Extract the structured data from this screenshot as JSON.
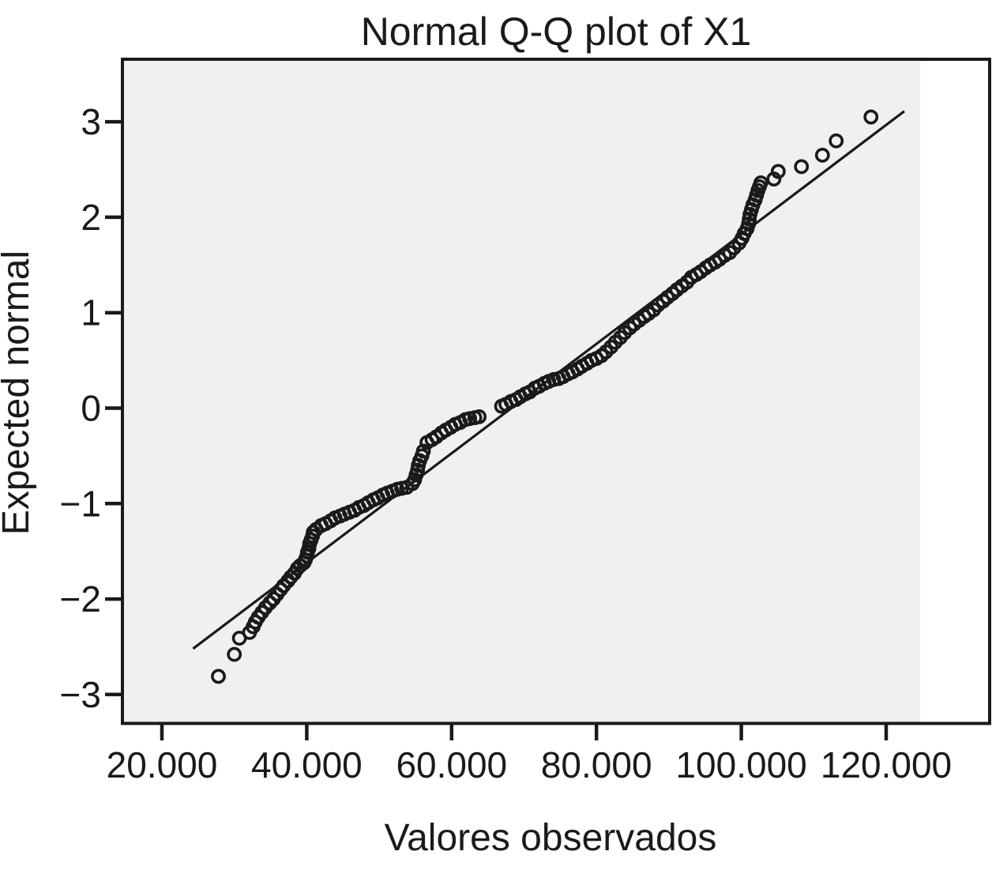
{
  "figure": {
    "title": "Normal Q-Q plot of X1",
    "x_axis_label": "Valores observados",
    "y_axis_label": "Expected normal"
  },
  "colors": {
    "ink": "#1a1a1a",
    "plot_background": "#f0f0ee",
    "page_background": "#ffffff"
  },
  "chart_data": {
    "type": "scatter",
    "title": "Normal Q-Q plot of X1",
    "xlabel": "Valores observados",
    "ylabel": "Expected normal",
    "marker": "open-circle",
    "grid": false,
    "legend": "none",
    "xlim": [
      14500,
      134500
    ],
    "ylim": [
      -3.3,
      3.65
    ],
    "x_ticks": [
      {
        "value": 20000,
        "label": "20.000"
      },
      {
        "value": 40000,
        "label": "40.000"
      },
      {
        "value": 60000,
        "label": "60.000"
      },
      {
        "value": 80000,
        "label": "80.000"
      },
      {
        "value": 100000,
        "label": "100.000"
      },
      {
        "value": 120000,
        "label": "120.000"
      }
    ],
    "y_ticks": [
      {
        "value": 3,
        "label": "3"
      },
      {
        "value": 2,
        "label": "2"
      },
      {
        "value": 1,
        "label": "1"
      },
      {
        "value": 0,
        "label": "0"
      },
      {
        "value": -1,
        "label": "−1"
      },
      {
        "value": -2,
        "label": "−2"
      },
      {
        "value": -3,
        "label": "−3"
      }
    ],
    "reference_line": {
      "x1": 24300,
      "y1": -2.52,
      "x2": 122500,
      "y2": 3.11
    },
    "points": [
      [
        27800,
        -2.81
      ],
      [
        30000,
        -2.58
      ],
      [
        30700,
        -2.41
      ],
      [
        32100,
        -2.35
      ],
      [
        32600,
        -2.29
      ],
      [
        32900,
        -2.24
      ],
      [
        33300,
        -2.19
      ],
      [
        33800,
        -2.14
      ],
      [
        34300,
        -2.09
      ],
      [
        34900,
        -2.04
      ],
      [
        35400,
        -2.0
      ],
      [
        35900,
        -1.95
      ],
      [
        36400,
        -1.9
      ],
      [
        36800,
        -1.86
      ],
      [
        37400,
        -1.81
      ],
      [
        37800,
        -1.77
      ],
      [
        38300,
        -1.73
      ],
      [
        38700,
        -1.68
      ],
      [
        39100,
        -1.65
      ],
      [
        39600,
        -1.62
      ],
      [
        39800,
        -1.59
      ],
      [
        40000,
        -1.55
      ],
      [
        40100,
        -1.51
      ],
      [
        40300,
        -1.47
      ],
      [
        40400,
        -1.42
      ],
      [
        40600,
        -1.38
      ],
      [
        40800,
        -1.34
      ],
      [
        40900,
        -1.3
      ],
      [
        41300,
        -1.27
      ],
      [
        42000,
        -1.23
      ],
      [
        42600,
        -1.21
      ],
      [
        43300,
        -1.18
      ],
      [
        43900,
        -1.15
      ],
      [
        44600,
        -1.13
      ],
      [
        45200,
        -1.11
      ],
      [
        45900,
        -1.09
      ],
      [
        46600,
        -1.07
      ],
      [
        47200,
        -1.04
      ],
      [
        47900,
        -1.02
      ],
      [
        48500,
        -0.99
      ],
      [
        49200,
        -0.96
      ],
      [
        49800,
        -0.94
      ],
      [
        50500,
        -0.91
      ],
      [
        51100,
        -0.89
      ],
      [
        51800,
        -0.87
      ],
      [
        52500,
        -0.85
      ],
      [
        53100,
        -0.84
      ],
      [
        53800,
        -0.83
      ],
      [
        54600,
        -0.79
      ],
      [
        54900,
        -0.75
      ],
      [
        55100,
        -0.7
      ],
      [
        55300,
        -0.65
      ],
      [
        55400,
        -0.6
      ],
      [
        55600,
        -0.55
      ],
      [
        55900,
        -0.5
      ],
      [
        56100,
        -0.45
      ],
      [
        56600,
        -0.36
      ],
      [
        57300,
        -0.33
      ],
      [
        57900,
        -0.3
      ],
      [
        58600,
        -0.26
      ],
      [
        59200,
        -0.23
      ],
      [
        59900,
        -0.2
      ],
      [
        60500,
        -0.17
      ],
      [
        61200,
        -0.15
      ],
      [
        61900,
        -0.12
      ],
      [
        62500,
        -0.11
      ],
      [
        63200,
        -0.1
      ],
      [
        63800,
        -0.09
      ],
      [
        66900,
        0.02
      ],
      [
        67500,
        0.04
      ],
      [
        68200,
        0.07
      ],
      [
        68900,
        0.09
      ],
      [
        69500,
        0.12
      ],
      [
        70200,
        0.15
      ],
      [
        70800,
        0.17
      ],
      [
        71500,
        0.21
      ],
      [
        72100,
        0.23
      ],
      [
        72800,
        0.26
      ],
      [
        73400,
        0.28
      ],
      [
        74100,
        0.3
      ],
      [
        74800,
        0.31
      ],
      [
        75400,
        0.33
      ],
      [
        76100,
        0.36
      ],
      [
        76700,
        0.38
      ],
      [
        77400,
        0.41
      ],
      [
        78000,
        0.44
      ],
      [
        78700,
        0.47
      ],
      [
        79300,
        0.5
      ],
      [
        80000,
        0.52
      ],
      [
        80700,
        0.55
      ],
      [
        81300,
        0.59
      ],
      [
        82000,
        0.64
      ],
      [
        82600,
        0.69
      ],
      [
        83300,
        0.74
      ],
      [
        83900,
        0.79
      ],
      [
        84600,
        0.84
      ],
      [
        85200,
        0.88
      ],
      [
        85900,
        0.92
      ],
      [
        86600,
        0.96
      ],
      [
        87200,
        0.99
      ],
      [
        87900,
        1.03
      ],
      [
        88500,
        1.08
      ],
      [
        89200,
        1.12
      ],
      [
        89800,
        1.16
      ],
      [
        90500,
        1.2
      ],
      [
        91100,
        1.24
      ],
      [
        91800,
        1.28
      ],
      [
        92500,
        1.32
      ],
      [
        93100,
        1.37
      ],
      [
        93800,
        1.4
      ],
      [
        94400,
        1.43
      ],
      [
        95100,
        1.47
      ],
      [
        95700,
        1.5
      ],
      [
        96400,
        1.53
      ],
      [
        97000,
        1.56
      ],
      [
        97700,
        1.6
      ],
      [
        98400,
        1.63
      ],
      [
        99000,
        1.68
      ],
      [
        99700,
        1.73
      ],
      [
        100100,
        1.78
      ],
      [
        100400,
        1.83
      ],
      [
        100800,
        1.88
      ],
      [
        101000,
        1.93
      ],
      [
        101100,
        1.98
      ],
      [
        101200,
        2.03
      ],
      [
        101400,
        2.08
      ],
      [
        101600,
        2.13
      ],
      [
        101900,
        2.18
      ],
      [
        102100,
        2.23
      ],
      [
        102300,
        2.28
      ],
      [
        102500,
        2.32
      ],
      [
        102700,
        2.36
      ],
      [
        104500,
        2.4
      ],
      [
        105100,
        2.48
      ],
      [
        108300,
        2.53
      ],
      [
        111200,
        2.65
      ],
      [
        113100,
        2.8
      ],
      [
        117900,
        3.05
      ]
    ]
  }
}
